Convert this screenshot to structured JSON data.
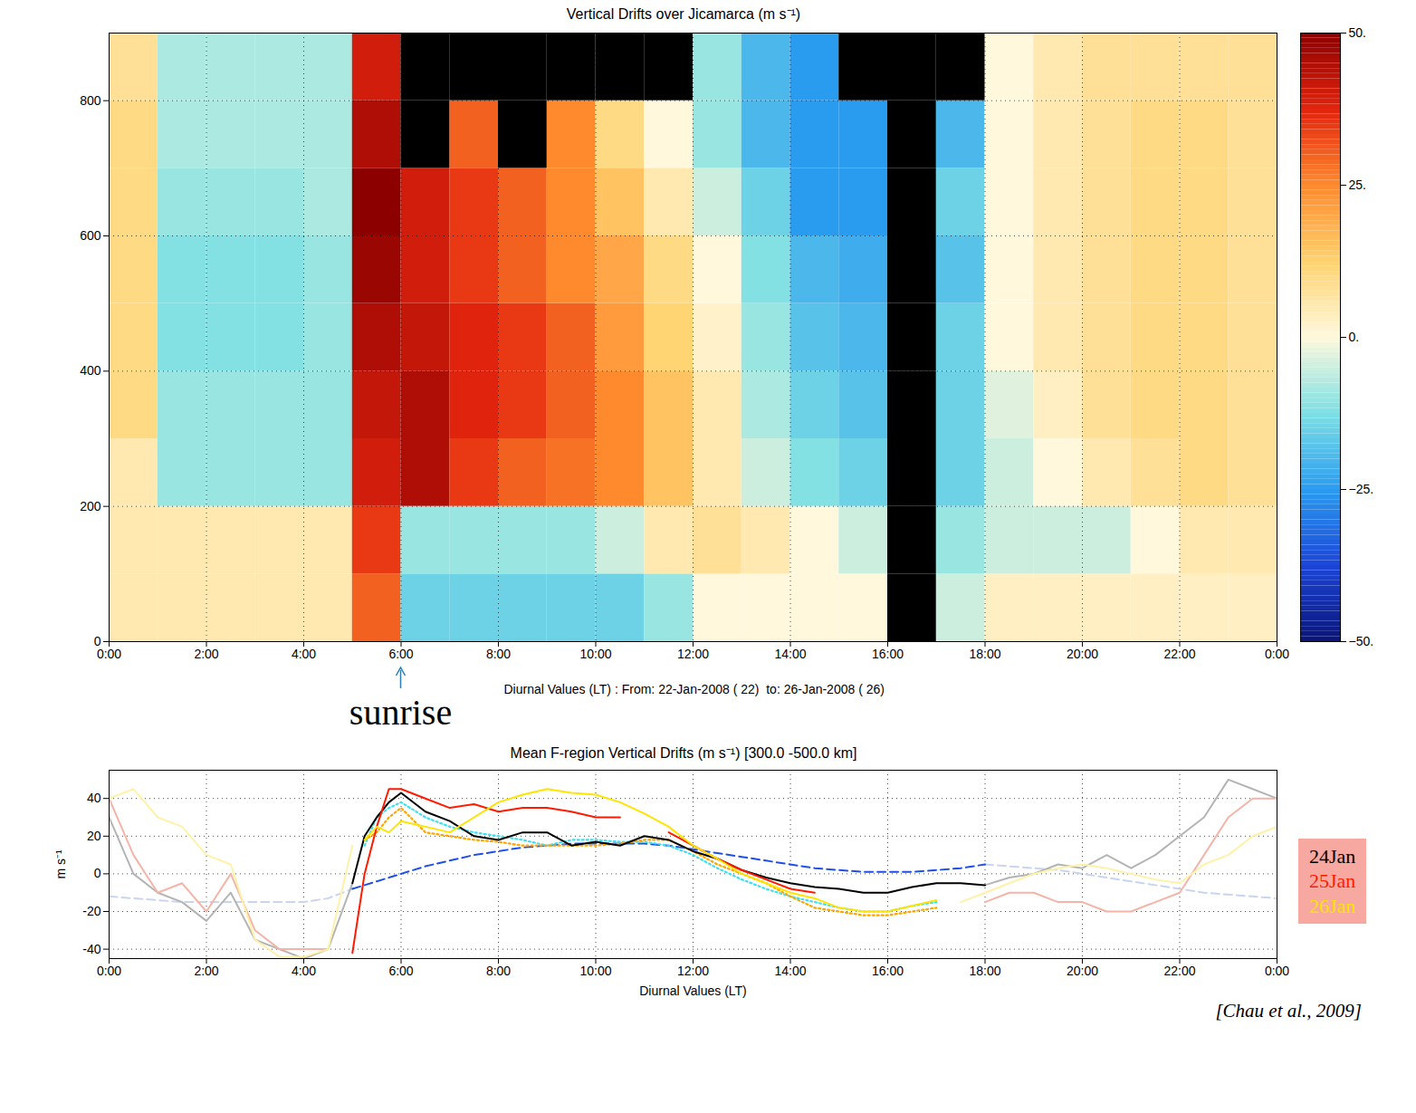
{
  "chart_data": [
    {
      "type": "heatmap",
      "title": "Vertical Drifts over Jicamarca (m s⁻¹)",
      "x_label": "Diurnal Values (LT) : From: 22-Jan-2008 ( 22)  to: 26-Jan-2008 ( 26)",
      "xlim": [
        0,
        24
      ],
      "xticks": [
        {
          "value": 0,
          "label": "0:00"
        },
        {
          "value": 2,
          "label": "2:00"
        },
        {
          "value": 4,
          "label": "4:00"
        },
        {
          "value": 6,
          "label": "6:00"
        },
        {
          "value": 8,
          "label": "8:00"
        },
        {
          "value": 10,
          "label": "10:00"
        },
        {
          "value": 12,
          "label": "12:00"
        },
        {
          "value": 14,
          "label": "14:00"
        },
        {
          "value": 16,
          "label": "16:00"
        },
        {
          "value": 18,
          "label": "18:00"
        },
        {
          "value": 20,
          "label": "20:00"
        },
        {
          "value": 22,
          "label": "22:00"
        },
        {
          "value": 24,
          "label": "0:00"
        }
      ],
      "ylim": [
        0,
        900
      ],
      "yticks": [
        0,
        200,
        400,
        600,
        800
      ],
      "grid": true,
      "x_edges": [
        0,
        1,
        2,
        3,
        4,
        5,
        6,
        7,
        8,
        9,
        10,
        11,
        12,
        13,
        14,
        15,
        16,
        17,
        18,
        19,
        20,
        21,
        22,
        23,
        24
      ],
      "y_edges": [
        0,
        100,
        200,
        300,
        400,
        500,
        600,
        700,
        800,
        900
      ],
      "cells": [
        [
          5,
          5,
          5,
          5,
          5,
          30,
          -15,
          -15,
          -15,
          -15,
          -15,
          -10,
          0,
          0,
          0,
          0,
          null,
          -5,
          3,
          3,
          3,
          3,
          3,
          3
        ],
        [
          5,
          5,
          5,
          5,
          5,
          35,
          -10,
          -10,
          -10,
          -10,
          -5,
          5,
          8,
          5,
          0,
          -5,
          null,
          -10,
          -5,
          -5,
          -5,
          0,
          5,
          5
        ],
        [
          5,
          -10,
          -10,
          -10,
          -10,
          40,
          45,
          35,
          30,
          28,
          25,
          15,
          5,
          -5,
          -12,
          -15,
          null,
          -15,
          -5,
          0,
          5,
          8,
          10,
          8
        ],
        [
          10,
          -10,
          -10,
          -10,
          -10,
          42,
          45,
          38,
          35,
          30,
          25,
          15,
          5,
          -8,
          -15,
          -18,
          null,
          -15,
          -3,
          3,
          8,
          10,
          10,
          8
        ],
        [
          10,
          -12,
          -12,
          -12,
          -10,
          45,
          42,
          38,
          35,
          30,
          22,
          12,
          2,
          -10,
          -18,
          -20,
          null,
          -15,
          0,
          5,
          8,
          10,
          10,
          8
        ],
        [
          10,
          -12,
          -12,
          -12,
          -10,
          48,
          40,
          35,
          30,
          25,
          20,
          10,
          0,
          -12,
          -20,
          -22,
          null,
          -18,
          0,
          5,
          8,
          10,
          10,
          8
        ],
        [
          10,
          -10,
          -10,
          -10,
          -8,
          50,
          40,
          35,
          30,
          25,
          15,
          5,
          -5,
          -15,
          -25,
          -25,
          null,
          -15,
          0,
          5,
          8,
          10,
          10,
          8
        ],
        [
          10,
          -8,
          -8,
          -8,
          -8,
          45,
          null,
          30,
          null,
          25,
          10,
          0,
          -10,
          -20,
          -25,
          -25,
          null,
          -20,
          0,
          5,
          8,
          10,
          10,
          8
        ],
        [
          8,
          -8,
          -8,
          -8,
          -8,
          40,
          null,
          null,
          null,
          null,
          null,
          null,
          -10,
          -20,
          -25,
          null,
          null,
          null,
          0,
          5,
          8,
          8,
          8,
          8
        ]
      ],
      "colorbar": {
        "range": [
          -50,
          50
        ],
        "ticks": [
          {
            "value": -50,
            "label": "−50."
          },
          {
            "value": -25,
            "label": "−25."
          },
          {
            "value": 0,
            "label": "0."
          },
          {
            "value": 25,
            "label": "25."
          },
          {
            "value": 50,
            "label": "50."
          }
        ]
      },
      "annotations": [
        {
          "text": "sunrise",
          "x": 6
        }
      ]
    },
    {
      "type": "line",
      "title": "Mean F-region Vertical Drifts (m s⁻¹) [300.0 -500.0 km]",
      "x_label": "Diurnal Values (LT)",
      "y_label": "m s⁻¹",
      "xlim": [
        0,
        24
      ],
      "xticks": [
        {
          "value": 0,
          "label": "0:00"
        },
        {
          "value": 2,
          "label": "2:00"
        },
        {
          "value": 4,
          "label": "4:00"
        },
        {
          "value": 6,
          "label": "6:00"
        },
        {
          "value": 8,
          "label": "8:00"
        },
        {
          "value": 10,
          "label": "10:00"
        },
        {
          "value": 12,
          "label": "12:00"
        },
        {
          "value": 14,
          "label": "14:00"
        },
        {
          "value": 16,
          "label": "16:00"
        },
        {
          "value": 18,
          "label": "18:00"
        },
        {
          "value": 20,
          "label": "20:00"
        },
        {
          "value": 22,
          "label": "22:00"
        },
        {
          "value": 24,
          "label": "0:00"
        }
      ],
      "ylim": [
        -45,
        55
      ],
      "yticks": [
        -40,
        -20,
        0,
        20,
        40
      ],
      "grid": true,
      "legend": "right",
      "x": [
        0,
        0.5,
        1,
        1.5,
        2,
        2.5,
        3,
        3.5,
        4,
        4.5,
        5,
        5.25,
        5.5,
        5.75,
        6,
        6.5,
        7,
        7.5,
        8,
        8.5,
        9,
        9.5,
        10,
        10.5,
        11,
        11.5,
        12,
        12.5,
        13,
        13.5,
        14,
        14.5,
        15,
        15.5,
        16,
        16.5,
        17,
        17.5,
        18,
        18.5,
        19,
        19.5,
        20,
        20.5,
        21,
        21.5,
        22,
        22.5,
        23,
        23.5,
        24
      ],
      "series": [
        {
          "color": "#c8d4f0",
          "line_style": "dashed",
          "values": [
            -12,
            -13,
            -14,
            -15,
            -15,
            -15,
            -15,
            -15,
            -15,
            -13,
            -8,
            null,
            null,
            null,
            null,
            null,
            null,
            null,
            null,
            null,
            null,
            null,
            null,
            null,
            null,
            null,
            null,
            null,
            null,
            null,
            null,
            null,
            null,
            null,
            null,
            null,
            null,
            null,
            5,
            4,
            3,
            2,
            0,
            -2,
            -4,
            -6,
            -8,
            -10,
            -11,
            -12,
            -13
          ]
        },
        {
          "color": "#b4b4b4",
          "line_style": "solid",
          "values": [
            30,
            0,
            -10,
            -15,
            -25,
            -10,
            -35,
            -40,
            -45,
            -40,
            -5,
            null,
            null,
            null,
            null,
            null,
            null,
            null,
            null,
            null,
            null,
            null,
            null,
            null,
            null,
            null,
            null,
            null,
            null,
            null,
            null,
            null,
            null,
            null,
            null,
            null,
            null,
            null,
            -6,
            -2,
            0,
            5,
            3,
            10,
            3,
            10,
            20,
            30,
            50,
            45,
            40
          ]
        },
        {
          "color": "#f5b4a8",
          "line_style": "solid",
          "values": [
            40,
            10,
            -10,
            -5,
            -20,
            0,
            -30,
            -40,
            -40,
            -40,
            null,
            null,
            null,
            null,
            null,
            null,
            null,
            null,
            null,
            null,
            null,
            null,
            null,
            null,
            null,
            null,
            null,
            null,
            null,
            null,
            null,
            null,
            null,
            null,
            null,
            null,
            null,
            null,
            -15,
            -10,
            -10,
            -15,
            -15,
            -20,
            -20,
            -15,
            -10,
            10,
            30,
            40,
            40
          ]
        },
        {
          "color": "#fff2a8",
          "line_style": "solid",
          "values": [
            40,
            45,
            30,
            25,
            10,
            5,
            -35,
            -44,
            -44,
            -40,
            15,
            null,
            null,
            null,
            null,
            null,
            null,
            null,
            null,
            null,
            null,
            null,
            null,
            null,
            null,
            null,
            null,
            null,
            null,
            null,
            null,
            null,
            null,
            null,
            null,
            null,
            null,
            -15,
            -10,
            -5,
            0,
            3,
            5,
            3,
            0,
            -3,
            -5,
            5,
            10,
            20,
            25
          ]
        },
        {
          "color": "#1e50e6",
          "line_style": "dashed",
          "values": [
            null,
            null,
            null,
            null,
            null,
            null,
            null,
            null,
            null,
            null,
            -8,
            -6,
            -4,
            -2,
            0,
            4,
            7,
            10,
            12,
            14,
            15,
            16,
            16,
            16,
            16,
            15,
            13,
            11,
            9,
            7,
            5,
            3,
            2,
            1,
            1,
            1,
            2,
            3,
            5,
            null,
            null,
            null,
            null,
            null,
            null,
            null,
            null,
            null,
            null,
            null,
            null
          ]
        },
        {
          "color": "#40e0f0",
          "line_style": "dotted",
          "values": [
            null,
            null,
            null,
            null,
            null,
            null,
            null,
            null,
            null,
            null,
            null,
            15,
            30,
            35,
            38,
            30,
            25,
            22,
            20,
            18,
            15,
            18,
            18,
            17,
            17,
            15,
            10,
            3,
            -3,
            -8,
            -12,
            -15,
            -18,
            -20,
            -20,
            -17,
            -15,
            null,
            null,
            null,
            null,
            null,
            null,
            null,
            null,
            null,
            null,
            null,
            null,
            null,
            null
          ]
        },
        {
          "color": "#ffa500",
          "line_style": "dotted",
          "values": [
            null,
            null,
            null,
            null,
            null,
            null,
            null,
            null,
            null,
            null,
            null,
            18,
            22,
            30,
            35,
            22,
            20,
            18,
            17,
            15,
            15,
            15,
            15,
            16,
            18,
            18,
            12,
            5,
            0,
            -5,
            -12,
            -18,
            -20,
            -22,
            -22,
            -20,
            -18,
            null,
            null,
            null,
            null,
            null,
            null,
            null,
            null,
            null,
            null,
            null,
            null,
            null,
            null
          ]
        },
        {
          "name": "24Jan",
          "color": "#000000",
          "line_style": "solid",
          "values": [
            null,
            null,
            null,
            null,
            null,
            null,
            null,
            null,
            null,
            null,
            -5,
            20,
            30,
            38,
            43,
            33,
            28,
            20,
            18,
            22,
            22,
            15,
            17,
            15,
            20,
            18,
            12,
            8,
            2,
            -2,
            -5,
            -7,
            -8,
            -10,
            -10,
            -7,
            -5,
            -5,
            -6,
            null,
            null,
            null,
            null,
            null,
            null,
            null,
            null,
            null,
            null,
            null,
            null
          ]
        },
        {
          "name": "25Jan",
          "color": "#ff1a00",
          "line_style": "solid",
          "values": [
            null,
            null,
            null,
            null,
            null,
            null,
            null,
            null,
            null,
            null,
            -42,
            0,
            25,
            45,
            45,
            40,
            35,
            37,
            33,
            35,
            35,
            33,
            30,
            30,
            null,
            22,
            15,
            8,
            2,
            -3,
            -8,
            -10,
            null,
            null,
            null,
            null,
            null,
            null,
            null,
            null,
            null,
            null,
            null,
            null,
            null,
            null,
            null,
            null,
            null,
            null,
            null
          ]
        },
        {
          "name": "26Jan",
          "color": "#ffe400",
          "line_style": "solid",
          "values": [
            null,
            null,
            null,
            null,
            null,
            null,
            null,
            null,
            null,
            null,
            null,
            18,
            25,
            22,
            28,
            25,
            22,
            30,
            38,
            42,
            45,
            43,
            42,
            38,
            32,
            25,
            15,
            8,
            0,
            -5,
            -10,
            -13,
            -18,
            -20,
            -20,
            -17,
            -14,
            null,
            null,
            null,
            null,
            null,
            null,
            null,
            null,
            null,
            null,
            null,
            null,
            null,
            null
          ]
        }
      ],
      "annotations": [
        {
          "text": "[Chau et al., 2009]"
        }
      ]
    }
  ]
}
